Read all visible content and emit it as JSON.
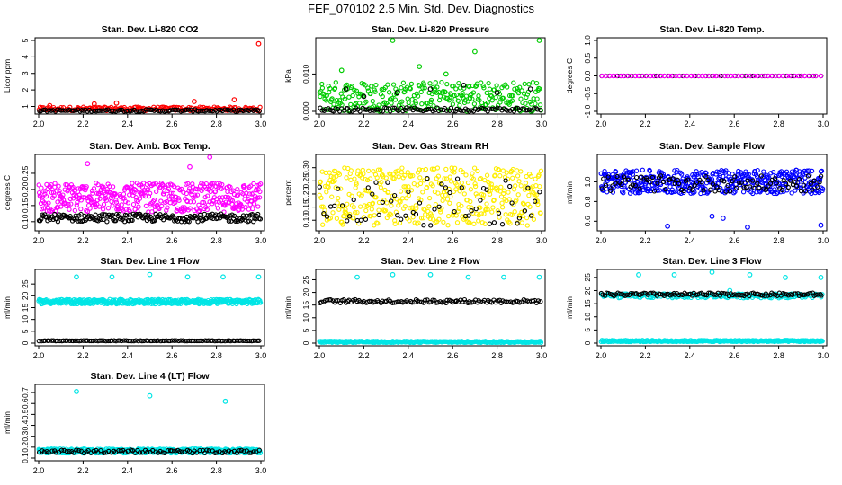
{
  "main_title": "FEF_070102  2.5 Min. Std. Dev. Diagnostics",
  "chart_data": [
    {
      "type": "scatter",
      "title": "Stan. Dev. Li-820 CO2",
      "ylabel": "Licor ppm",
      "xlim": [
        2.0,
        3.0
      ],
      "ylim": [
        0.7,
        5.0
      ],
      "xticks": [
        "2.0",
        "2.2",
        "2.4",
        "2.6",
        "2.8",
        "3.0"
      ],
      "yticks": [
        "1",
        "2",
        "3",
        "4",
        "5"
      ],
      "ytick_values": [
        1,
        2,
        3,
        4,
        5
      ],
      "series": [
        {
          "name": "red",
          "color": "#ff0000",
          "base": 0.85,
          "spread": 0.12,
          "n": 200,
          "outliers": [
            {
              "x": 2.99,
              "y": 4.8
            },
            {
              "x": 2.88,
              "y": 1.4
            },
            {
              "x": 2.7,
              "y": 1.3
            },
            {
              "x": 2.35,
              "y": 1.2
            },
            {
              "x": 2.25,
              "y": 1.15
            },
            {
              "x": 2.05,
              "y": 1.05
            }
          ]
        },
        {
          "name": "black",
          "color": "#000000",
          "base": 0.75,
          "spread": 0.06,
          "n": 110,
          "outliers": []
        }
      ]
    },
    {
      "type": "scatter",
      "title": "Stan. Dev. Li-820 Pressure",
      "ylabel": "kPa",
      "xlim": [
        2.0,
        3.0
      ],
      "ylim": [
        0.0,
        0.019
      ],
      "xticks": [
        "2.0",
        "2.2",
        "2.4",
        "2.6",
        "2.8",
        "3.0"
      ],
      "yticks": [
        "0.000",
        "0.010"
      ],
      "ytick_values": [
        0.0,
        0.01
      ],
      "series": [
        {
          "name": "green",
          "color": "#00cc00",
          "base": 0.004,
          "spread": 0.004,
          "n": 300,
          "outliers": [
            {
              "x": 2.33,
              "y": 0.019
            },
            {
              "x": 2.99,
              "y": 0.019
            },
            {
              "x": 2.7,
              "y": 0.016
            },
            {
              "x": 2.45,
              "y": 0.012
            },
            {
              "x": 2.1,
              "y": 0.011
            },
            {
              "x": 2.57,
              "y": 0.01
            }
          ]
        },
        {
          "name": "black",
          "color": "#000000",
          "base": 0.0005,
          "spread": 0.0005,
          "n": 110,
          "outliers": [
            {
              "x": 2.12,
              "y": 0.006
            },
            {
              "x": 2.35,
              "y": 0.005
            },
            {
              "x": 2.5,
              "y": 0.006
            },
            {
              "x": 2.65,
              "y": 0.007
            },
            {
              "x": 2.8,
              "y": 0.005
            },
            {
              "x": 2.95,
              "y": 0.006
            },
            {
              "x": 2.2,
              "y": 0.004
            }
          ]
        }
      ]
    },
    {
      "type": "scatter",
      "title": "Stan. Dev. Li-820 Temp.",
      "ylabel": "degrees C",
      "xlim": [
        2.0,
        3.0
      ],
      "ylim": [
        -1.0,
        1.0
      ],
      "xticks": [
        "2.0",
        "2.2",
        "2.4",
        "2.6",
        "2.8",
        "3.0"
      ],
      "yticks": [
        "-1.0",
        "-0.5",
        "0.0",
        "0.5",
        "1.0"
      ],
      "ytick_values": [
        -1.0,
        -0.5,
        0.0,
        0.5,
        1.0
      ],
      "series": [
        {
          "name": "black",
          "color": "#000000",
          "base": 0.0,
          "spread": 0.0,
          "n": 60,
          "outliers": []
        },
        {
          "name": "magenta",
          "color": "#ff00ff",
          "base": 0.0,
          "spread": 0.0,
          "n": 60,
          "outliers": []
        }
      ]
    },
    {
      "type": "scatter",
      "title": "Stan. Dev. Amb. Box Temp.",
      "ylabel": "degrees C",
      "xlim": [
        2.0,
        3.0
      ],
      "ylim": [
        0.08,
        0.3
      ],
      "xticks": [
        "2.0",
        "2.2",
        "2.4",
        "2.6",
        "2.8",
        "3.0"
      ],
      "yticks": [
        "0.10",
        "0.15",
        "0.20",
        "0.25"
      ],
      "ytick_values": [
        0.1,
        0.15,
        0.2,
        0.25
      ],
      "series": [
        {
          "name": "magenta",
          "color": "#ff00ff",
          "base": 0.175,
          "spread": 0.045,
          "n": 450,
          "outliers": [
            {
              "x": 2.77,
              "y": 0.3
            },
            {
              "x": 2.22,
              "y": 0.28
            },
            {
              "x": 2.68,
              "y": 0.27
            }
          ]
        },
        {
          "name": "black",
          "color": "#000000",
          "base": 0.112,
          "spread": 0.012,
          "n": 200,
          "outliers": []
        }
      ]
    },
    {
      "type": "scatter",
      "title": "Stan. Dev. Gas Stream RH",
      "ylabel": "percent",
      "xlim": [
        2.0,
        3.0
      ],
      "ylim": [
        0.07,
        0.34
      ],
      "xticks": [
        "2.0",
        "2.2",
        "2.4",
        "2.6",
        "2.8",
        "3.0"
      ],
      "yticks": [
        "0.10",
        "0.15",
        "0.20",
        "0.25",
        "0.30"
      ],
      "ytick_values": [
        0.1,
        0.15,
        0.2,
        0.25,
        0.3
      ],
      "series": [
        {
          "name": "yellow",
          "color": "#ffee00",
          "base": 0.19,
          "spread": 0.11,
          "n": 420,
          "outliers": []
        },
        {
          "name": "black",
          "color": "#000000",
          "base": 0.17,
          "spread": 0.09,
          "n": 60,
          "outliers": []
        }
      ]
    },
    {
      "type": "scatter",
      "title": "Stan. Dev. Sample Flow",
      "ylabel": "ml/min",
      "xlim": [
        2.0,
        3.0
      ],
      "ylim": [
        0.53,
        1.25
      ],
      "xticks": [
        "2.0",
        "2.2",
        "2.4",
        "2.6",
        "2.8",
        "3.0"
      ],
      "yticks": [
        "0.6",
        "0.8",
        "1.0"
      ],
      "ytick_values": [
        0.6,
        0.8,
        1.0
      ],
      "series": [
        {
          "name": "blue",
          "color": "#0000ff",
          "base": 1.0,
          "spread": 0.12,
          "n": 450,
          "outliers": [
            {
              "x": 2.99,
              "y": 0.56
            },
            {
              "x": 2.3,
              "y": 0.55
            },
            {
              "x": 2.66,
              "y": 0.54
            },
            {
              "x": 2.5,
              "y": 0.65
            },
            {
              "x": 2.55,
              "y": 0.63
            }
          ]
        },
        {
          "name": "black",
          "color": "#000000",
          "base": 0.98,
          "spread": 0.08,
          "n": 100,
          "outliers": []
        }
      ]
    },
    {
      "type": "scatter",
      "title": "Stan. Dev. Line 1 Flow",
      "ylabel": "ml/min",
      "xlim": [
        2.0,
        3.0
      ],
      "ylim": [
        0,
        30
      ],
      "xticks": [
        "2.0",
        "2.2",
        "2.4",
        "2.6",
        "2.8",
        "3.0"
      ],
      "yticks": [
        "0",
        "5",
        "10",
        "15",
        "20",
        "25"
      ],
      "ytick_values": [
        0,
        5,
        10,
        15,
        20,
        25
      ],
      "series": [
        {
          "name": "cyan",
          "color": "#00e5e5",
          "base": 17.5,
          "spread": 1.0,
          "n": 420,
          "outliers": [
            {
              "x": 2.17,
              "y": 28
            },
            {
              "x": 2.33,
              "y": 28
            },
            {
              "x": 2.5,
              "y": 29
            },
            {
              "x": 2.67,
              "y": 28
            },
            {
              "x": 2.83,
              "y": 28
            },
            {
              "x": 2.99,
              "y": 28
            }
          ]
        },
        {
          "name": "black",
          "color": "#000000",
          "base": 1.0,
          "spread": 0.1,
          "n": 110,
          "outliers": []
        }
      ]
    },
    {
      "type": "scatter",
      "title": "Stan. Dev. Line 2 Flow",
      "ylabel": "ml/min",
      "xlim": [
        2.0,
        3.0
      ],
      "ylim": [
        0,
        28
      ],
      "xticks": [
        "2.0",
        "2.2",
        "2.4",
        "2.6",
        "2.8",
        "3.0"
      ],
      "yticks": [
        "0",
        "5",
        "10",
        "15",
        "20",
        "25"
      ],
      "ytick_values": [
        0,
        5,
        10,
        15,
        20,
        25
      ],
      "series": [
        {
          "name": "cyan_low",
          "color": "#00e5e5",
          "base": 0.5,
          "spread": 0.3,
          "n": 300,
          "outliers": [
            {
              "x": 2.17,
              "y": 26
            },
            {
              "x": 2.33,
              "y": 27
            },
            {
              "x": 2.5,
              "y": 27
            },
            {
              "x": 2.67,
              "y": 26
            },
            {
              "x": 2.83,
              "y": 26
            },
            {
              "x": 2.99,
              "y": 26
            }
          ]
        },
        {
          "name": "black",
          "color": "#000000",
          "base": 16.5,
          "spread": 0.7,
          "n": 120,
          "outliers": []
        }
      ]
    },
    {
      "type": "scatter",
      "title": "Stan. Dev. Line 3 Flow",
      "ylabel": "ml/min",
      "xlim": [
        2.0,
        3.0
      ],
      "ylim": [
        0,
        27
      ],
      "xticks": [
        "2.0",
        "2.2",
        "2.4",
        "2.6",
        "2.8",
        "3.0"
      ],
      "yticks": [
        "0",
        "5",
        "10",
        "15",
        "20",
        "25"
      ],
      "ytick_values": [
        0,
        5,
        10,
        15,
        20,
        25
      ],
      "series": [
        {
          "name": "cyan_low",
          "color": "#00e5e5",
          "base": 0.8,
          "spread": 0.3,
          "n": 300,
          "outliers": [
            {
              "x": 2.17,
              "y": 26
            },
            {
              "x": 2.33,
              "y": 26
            },
            {
              "x": 2.5,
              "y": 27
            },
            {
              "x": 2.67,
              "y": 26
            },
            {
              "x": 2.83,
              "y": 25
            },
            {
              "x": 2.99,
              "y": 25
            },
            {
              "x": 2.58,
              "y": 20
            }
          ]
        },
        {
          "name": "cyan_high",
          "color": "#00e5e5",
          "base": 18.0,
          "spread": 0.8,
          "n": 200,
          "outliers": []
        },
        {
          "name": "black",
          "color": "#000000",
          "base": 18.5,
          "spread": 0.6,
          "n": 120,
          "outliers": []
        }
      ]
    },
    {
      "type": "scatter",
      "title": "Stan. Dev. Line 4 (LT) Flow",
      "ylabel": "ml/min",
      "xlim": [
        2.0,
        3.0
      ],
      "ylim": [
        0.1,
        0.75
      ],
      "xticks": [
        "2.0",
        "2.2",
        "2.4",
        "2.6",
        "2.8",
        "3.0"
      ],
      "yticks": [
        "0.1",
        "0.2",
        "0.3",
        "0.4",
        "0.5",
        "0.6",
        "0.7"
      ],
      "ytick_values": [
        0.1,
        0.2,
        0.3,
        0.4,
        0.5,
        0.6,
        0.7
      ],
      "series": [
        {
          "name": "cyan",
          "color": "#00e5e5",
          "base": 0.165,
          "spread": 0.02,
          "n": 420,
          "outliers": [
            {
              "x": 2.17,
              "y": 0.71
            },
            {
              "x": 2.5,
              "y": 0.67
            },
            {
              "x": 2.84,
              "y": 0.62
            }
          ]
        },
        {
          "name": "black",
          "color": "#000000",
          "base": 0.16,
          "spread": 0.015,
          "n": 90,
          "outliers": []
        }
      ]
    }
  ]
}
